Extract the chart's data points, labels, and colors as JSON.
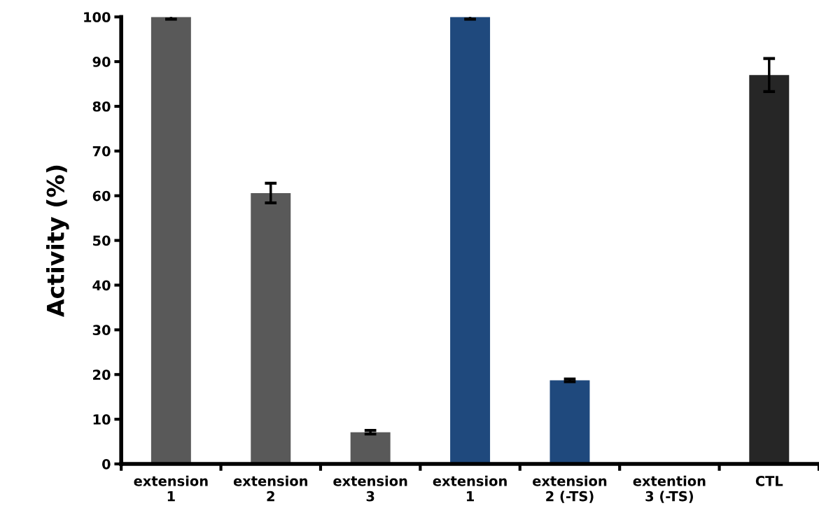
{
  "chart_data": {
    "type": "bar",
    "ylabel": "Activity (%)",
    "categories": [
      "extension\n1",
      "extension\n2",
      "extension\n3",
      "extension\n1",
      "extension\n2 (-TS)",
      "extention\n3 (-TS)",
      "CTL"
    ],
    "values": [
      100,
      60.6,
      7.1,
      100,
      18.7,
      0,
      87.0
    ],
    "errors": [
      0.5,
      2.2,
      0.4,
      0.5,
      0.3,
      null,
      3.7
    ],
    "colors": [
      "#595959",
      "#595959",
      "#595959",
      "#1f497d",
      "#1f497d",
      "#1f497d",
      "#262626"
    ],
    "ylim": [
      0,
      100
    ],
    "yticks": [
      0,
      10,
      20,
      30,
      40,
      50,
      60,
      70,
      80,
      90,
      100
    ],
    "grid": false,
    "legend": false
  }
}
